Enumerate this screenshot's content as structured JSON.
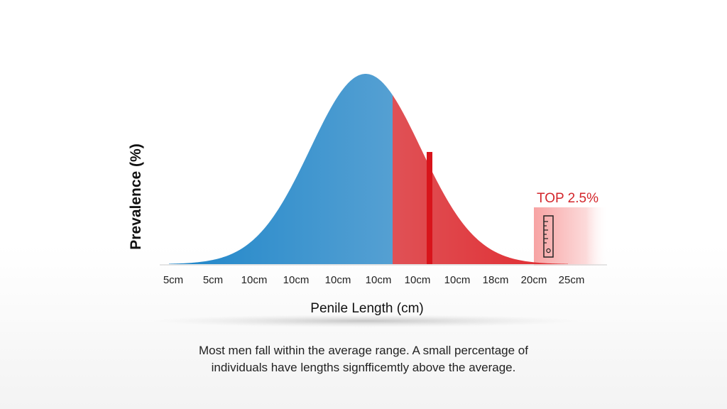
{
  "chart_data": {
    "type": "area",
    "ylabel": "Prevalence (%)",
    "xlabel": "Penile Length (cm)",
    "x_tick_labels": [
      "5cm",
      "5cm",
      "10cm",
      "10cm",
      "10cm",
      "10cm",
      "10cm",
      "10cm",
      "18cm",
      "20cm",
      "25cm"
    ],
    "distribution": "normal (bell curve), peak slightly left of center",
    "regions": [
      {
        "segment": "left of mean",
        "color": "#3f9ad6"
      },
      {
        "segment": "right of mean",
        "color": "#c98592"
      },
      {
        "segment": "upper tail",
        "color": "#e0353a"
      }
    ],
    "highlight": {
      "label": "TOP 2.5%",
      "color": "#d3262b"
    },
    "grid": false
  },
  "caption": {
    "line1": "Most men fall within the average range. A small percentage of",
    "line2": "individuals have lengths signfficemtly above the average."
  },
  "icons": {
    "highlight_icon": "ruler-icon"
  }
}
